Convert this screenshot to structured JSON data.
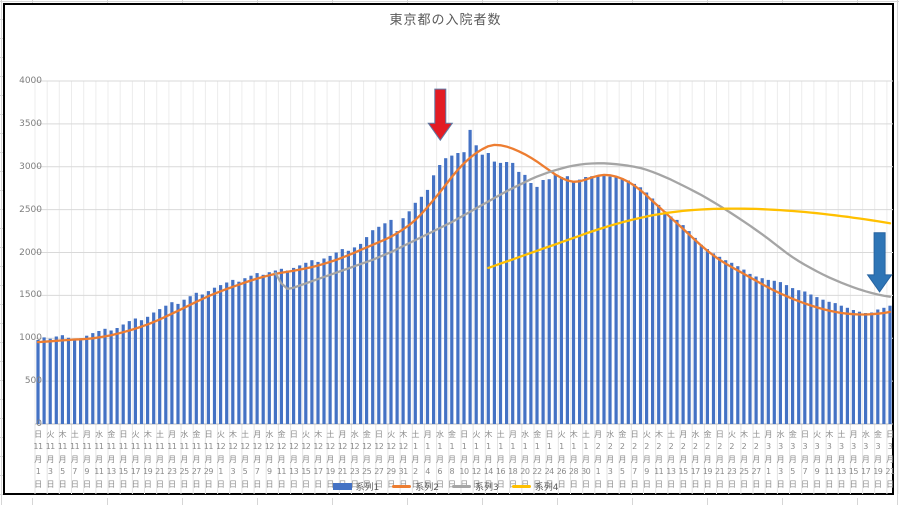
{
  "chart_data": {
    "type": "bar",
    "combo": "bar + line",
    "title": "東京都の入院者数",
    "ylabel": "",
    "xlabel": "",
    "grid": true,
    "legend_position": "bottom",
    "y_axis": {
      "min": 0,
      "max": 4000,
      "step": 500,
      "ticks": [
        0,
        500,
        1000,
        1500,
        2000,
        2500,
        3000,
        3500,
        4000
      ]
    },
    "x_axis": {
      "start": "2020年11月1日(日)",
      "end": "2021年3月21日(日)",
      "interval": "daily (141 categories)",
      "labels_every_n_days": 2
    },
    "x_labels": [
      "日,11,1",
      "火,11,3",
      "木,11,5",
      "土,11,7",
      "月,11,9",
      "水,11,11",
      "金,11,13",
      "日,11,15",
      "火,11,17",
      "木,11,19",
      "土,11,21",
      "月,11,23",
      "水,11,25",
      "金,11,27",
      "日,11,29",
      "火,12,1",
      "木,12,3",
      "土,12,5",
      "月,12,7",
      "水,12,9",
      "金,12,11",
      "日,12,13",
      "火,12,15",
      "木,12,17",
      "土,12,19",
      "月,12,21",
      "水,12,23",
      "金,12,25",
      "日,12,27",
      "火,12,29",
      "木,12,31",
      "土,1,2",
      "月,1,4",
      "水,1,6",
      "金,1,8",
      "日,1,10",
      "火,1,12",
      "木,1,14",
      "土,1,16",
      "月,1,18",
      "水,1,20",
      "金,1,22",
      "日,1,24",
      "火,1,26",
      "木,1,28",
      "土,1,30",
      "月,2,1",
      "水,2,3",
      "金,2,5",
      "日,2,7",
      "火,2,9",
      "木,2,11",
      "土,2,13",
      "月,2,15",
      "水,2,17",
      "金,2,19",
      "日,2,21",
      "火,2,23",
      "木,2,25",
      "土,2,27",
      "月,3,1",
      "水,3,3",
      "金,3,5",
      "日,3,7",
      "火,3,9",
      "木,3,11",
      "土,3,13",
      "月,3,15",
      "水,3,17",
      "金,3,19",
      "日,3,21"
    ],
    "series": [
      {
        "name": "系列1",
        "type": "bar",
        "color": "#4472C4",
        "start_index": 0,
        "values": [
          980,
          1010,
          995,
          1020,
          1035,
          1005,
          985,
          1000,
          1030,
          1060,
          1085,
          1110,
          1090,
          1120,
          1160,
          1200,
          1230,
          1210,
          1250,
          1300,
          1340,
          1380,
          1420,
          1400,
          1450,
          1490,
          1530,
          1510,
          1550,
          1590,
          1620,
          1650,
          1680,
          1660,
          1700,
          1730,
          1760,
          1740,
          1770,
          1790,
          1810,
          1790,
          1820,
          1850,
          1880,
          1910,
          1890,
          1930,
          1960,
          2000,
          2040,
          2020,
          2060,
          2100,
          2180,
          2260,
          2300,
          2340,
          2380,
          2250,
          2400,
          2480,
          2580,
          2650,
          2730,
          2900,
          3020,
          3100,
          3130,
          3160,
          3170,
          3430,
          3250,
          3140,
          3160,
          3060,
          3045,
          3055,
          3045,
          2940,
          2905,
          2810,
          2765,
          2845,
          2855,
          2915,
          2880,
          2890,
          2820,
          2850,
          2880,
          2890,
          2890,
          2895,
          2885,
          2875,
          2865,
          2840,
          2800,
          2760,
          2700,
          2630,
          2555,
          2480,
          2420,
          2380,
          2320,
          2250,
          2170,
          2090,
          2040,
          1990,
          1950,
          1910,
          1880,
          1840,
          1800,
          1750,
          1720,
          1700,
          1680,
          1670,
          1655,
          1620,
          1585,
          1560,
          1545,
          1510,
          1480,
          1450,
          1425,
          1410,
          1380,
          1355,
          1330,
          1310,
          1295,
          1300,
          1335,
          1355,
          1380
        ]
      },
      {
        "name": "系列2",
        "type": "line",
        "color": "#ED7D31",
        "start_index": 0,
        "values": [
          955,
          960,
          965,
          970,
          975,
          980,
          985,
          988,
          992,
          1000,
          1010,
          1022,
          1036,
          1052,
          1070,
          1090,
          1112,
          1136,
          1162,
          1190,
          1220,
          1252,
          1286,
          1320,
          1355,
          1390,
          1425,
          1458,
          1490,
          1520,
          1548,
          1574,
          1600,
          1625,
          1650,
          1674,
          1696,
          1716,
          1734,
          1750,
          1764,
          1776,
          1788,
          1800,
          1814,
          1830,
          1848,
          1868,
          1890,
          1914,
          1940,
          1968,
          1998,
          2030,
          2060,
          2090,
          2120,
          2150,
          2185,
          2225,
          2270,
          2320,
          2380,
          2450,
          2530,
          2615,
          2700,
          2790,
          2880,
          2965,
          3040,
          3105,
          3160,
          3205,
          3240,
          3255,
          3250,
          3235,
          3210,
          3180,
          3145,
          3105,
          3060,
          3010,
          2960,
          2910,
          2870,
          2840,
          2825,
          2830,
          2850,
          2875,
          2895,
          2905,
          2900,
          2885,
          2860,
          2825,
          2780,
          2725,
          2665,
          2600,
          2535,
          2470,
          2405,
          2340,
          2275,
          2210,
          2145,
          2080,
          2020,
          1965,
          1915,
          1870,
          1830,
          1790,
          1750,
          1710,
          1670,
          1630,
          1592,
          1556,
          1522,
          1490,
          1460,
          1432,
          1406,
          1382,
          1360,
          1340,
          1322,
          1307,
          1295,
          1286,
          1280,
          1277,
          1277,
          1280,
          1286,
          1295,
          1307
        ]
      },
      {
        "name": "系列3",
        "type": "line",
        "color": "#A5A5A5",
        "start_index": 39,
        "values": [
          1760,
          1640,
          1575,
          1590,
          1615,
          1640,
          1665,
          1690,
          1715,
          1740,
          1765,
          1790,
          1815,
          1840,
          1865,
          1890,
          1915,
          1945,
          1975,
          2005,
          2040,
          2075,
          2110,
          2145,
          2180,
          2215,
          2250,
          2285,
          2320,
          2355,
          2395,
          2435,
          2475,
          2515,
          2555,
          2595,
          2635,
          2675,
          2715,
          2750,
          2785,
          2820,
          2855,
          2885,
          2912,
          2938,
          2960,
          2980,
          2998,
          3013,
          3025,
          3033,
          3038,
          3040,
          3040,
          3036,
          3030,
          3022,
          3012,
          3000,
          2985,
          2965,
          2940,
          2912,
          2882,
          2850,
          2815,
          2780,
          2745,
          2708,
          2670,
          2630,
          2588,
          2545,
          2500,
          2455,
          2408,
          2360,
          2312,
          2262,
          2212,
          2160,
          2105,
          2050,
          1995,
          1945,
          1900,
          1858,
          1818,
          1780,
          1744,
          1710,
          1678,
          1648,
          1620,
          1594,
          1570,
          1548,
          1528,
          1510,
          1496,
          1485
        ]
      },
      {
        "name": "系列4",
        "type": "line",
        "color": "#FFC000",
        "start_index": 74,
        "values": [
          1820,
          1845,
          1870,
          1895,
          1920,
          1945,
          1970,
          1995,
          2020,
          2045,
          2070,
          2095,
          2120,
          2145,
          2170,
          2195,
          2220,
          2245,
          2268,
          2290,
          2312,
          2332,
          2352,
          2370,
          2388,
          2404,
          2420,
          2434,
          2446,
          2458,
          2468,
          2477,
          2485,
          2492,
          2497,
          2502,
          2505,
          2508,
          2510,
          2511,
          2512,
          2512,
          2511,
          2510,
          2508,
          2505,
          2502,
          2498,
          2494,
          2489,
          2484,
          2478,
          2472,
          2465,
          2458,
          2450,
          2442,
          2434,
          2425,
          2416,
          2406,
          2396,
          2386,
          2375,
          2364,
          2352,
          2340
        ]
      }
    ],
    "legend": [
      "系列1",
      "系列2",
      "系列3",
      "系列4"
    ],
    "annotations": [
      {
        "name": "red-down-arrow",
        "shape": "down-arrow",
        "color": "#E31B23",
        "outline": "#5B7AA5",
        "day_index": 66.6,
        "from_value": 3905,
        "to_value": 3310
      },
      {
        "name": "blue-down-arrow",
        "shape": "down-arrow",
        "color": "#2E75B6",
        "outline": "#2763A0",
        "day_index": 138.8,
        "from_value": 2230,
        "to_value": 1540
      }
    ],
    "colors": {
      "bar": "#4472C4",
      "line2": "#ED7D31",
      "line3": "#A5A5A5",
      "line4": "#FFC000",
      "gridline": "#D9D9D9",
      "gridline_vertical": "#ECECEC",
      "axis_text": "#7F7F7F",
      "title_text": "#595959",
      "chart_border": "#000000"
    }
  }
}
